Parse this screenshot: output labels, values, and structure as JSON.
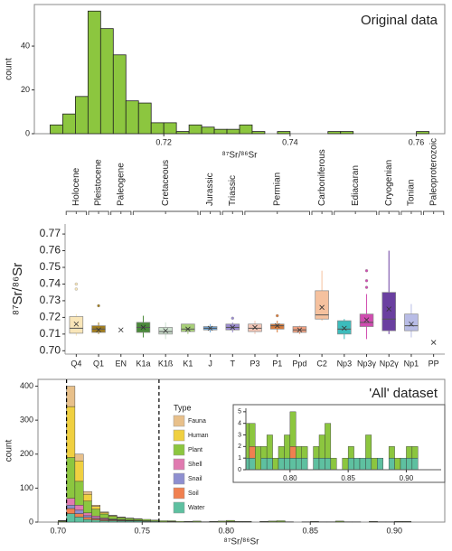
{
  "chart_data": [
    {
      "type": "histogram",
      "title": "Original data",
      "x_label": "⁸⁷Sr/⁸⁶Sr",
      "y_label": "count",
      "bins": [
        0.702,
        0.704,
        0.706,
        0.708,
        0.71,
        0.712,
        0.714,
        0.716,
        0.718,
        0.72,
        0.722,
        0.724,
        0.726,
        0.728,
        0.73,
        0.732,
        0.734,
        0.736,
        0.738,
        0.74,
        0.742,
        0.744,
        0.746,
        0.748,
        0.75,
        0.752,
        0.754,
        0.756,
        0.758,
        0.76,
        0.762
      ],
      "values": [
        4,
        9,
        17,
        56,
        48,
        36,
        15,
        14,
        5,
        5,
        1,
        4,
        3,
        2,
        2,
        4,
        1,
        0,
        1,
        0,
        0,
        0,
        1,
        1,
        0,
        0,
        0,
        0,
        0,
        1
      ],
      "color": "#8cc63f",
      "xlim": [
        0.6995,
        0.7645
      ],
      "xticks": [
        0.72,
        0.74,
        0.76
      ],
      "ylim": [
        0,
        59
      ],
      "yticks": [
        0,
        20,
        40
      ]
    },
    {
      "type": "box",
      "y_label": "⁸⁷Sr/⁸⁶Sr",
      "categories": [
        "Q4",
        "Q1",
        "EN",
        "K1a",
        "K1ß",
        "K1",
        "J",
        "T",
        "P3",
        "P1",
        "Ppd",
        "C2",
        "Np3",
        "Np3γ",
        "Np2γ",
        "Np1",
        "PP"
      ],
      "groups": [
        {
          "label": "Holocene",
          "members": [
            "Q4"
          ]
        },
        {
          "label": "Pleistocene",
          "members": [
            "Q1"
          ]
        },
        {
          "label": "Paleogene",
          "members": [
            "EN"
          ]
        },
        {
          "label": "Cretaceous",
          "members": [
            "K1a",
            "K1ß",
            "K1"
          ]
        },
        {
          "label": "Jurassic",
          "members": [
            "J"
          ]
        },
        {
          "label": "Triassic",
          "members": [
            "T"
          ]
        },
        {
          "label": "Permian",
          "members": [
            "P3",
            "P1",
            "Ppd"
          ]
        },
        {
          "label": "Carboniferous",
          "members": [
            "C2"
          ]
        },
        {
          "label": "Ediacaran",
          "members": [
            "Np3",
            "Np3γ"
          ]
        },
        {
          "label": "Cryogenian",
          "members": [
            "Np2γ"
          ]
        },
        {
          "label": "Tonian",
          "members": [
            "Np1"
          ]
        },
        {
          "label": "Paleoproterozoic",
          "members": [
            "PP"
          ]
        }
      ],
      "boxes": [
        {
          "whislo": 0.709,
          "q1": 0.7105,
          "median": 0.7135,
          "q3": 0.7205,
          "whishi": 0.722,
          "mean": 0.716,
          "fliers": [
            0.737,
            0.74
          ],
          "color": "#f9e6b8"
        },
        {
          "whislo": 0.71,
          "q1": 0.711,
          "median": 0.713,
          "q3": 0.715,
          "whishi": 0.717,
          "mean": 0.7125,
          "fliers": [
            0.727
          ],
          "color": "#a07c1e"
        },
        {
          "mean": 0.7125,
          "color": "#999999"
        },
        {
          "whislo": 0.708,
          "q1": 0.711,
          "median": 0.714,
          "q3": 0.717,
          "whishi": 0.721,
          "mean": 0.714,
          "fliers": [],
          "color": "#4a8a3a"
        },
        {
          "whislo": 0.707,
          "q1": 0.71,
          "median": 0.7115,
          "q3": 0.714,
          "whishi": 0.717,
          "mean": 0.712,
          "fliers": [],
          "color": "#cfe3d0"
        },
        {
          "whislo": 0.71,
          "q1": 0.7115,
          "median": 0.713,
          "q3": 0.716,
          "whishi": 0.716,
          "mean": 0.713,
          "fliers": [],
          "color": "#a8d078"
        },
        {
          "whislo": 0.711,
          "q1": 0.7125,
          "median": 0.7135,
          "q3": 0.7145,
          "whishi": 0.716,
          "mean": 0.7135,
          "fliers": [],
          "color": "#6fa8dc"
        },
        {
          "whislo": 0.711,
          "q1": 0.7125,
          "median": 0.714,
          "q3": 0.716,
          "whishi": 0.717,
          "mean": 0.714,
          "fliers": [
            0.7195
          ],
          "color": "#9b8bd0"
        },
        {
          "whislo": 0.71,
          "q1": 0.7115,
          "median": 0.7135,
          "q3": 0.716,
          "whishi": 0.718,
          "mean": 0.714,
          "fliers": [],
          "color": "#f4c6b6"
        },
        {
          "whislo": 0.711,
          "q1": 0.713,
          "median": 0.715,
          "q3": 0.716,
          "whishi": 0.718,
          "mean": 0.715,
          "fliers": [
            0.721
          ],
          "color": "#d97b3a"
        },
        {
          "whislo": 0.71,
          "q1": 0.711,
          "median": 0.7125,
          "q3": 0.7145,
          "whishi": 0.715,
          "mean": 0.7125,
          "fliers": [],
          "color": "#f0a080"
        },
        {
          "whislo": 0.718,
          "q1": 0.719,
          "median": 0.7215,
          "q3": 0.736,
          "whishi": 0.748,
          "mean": 0.726,
          "fliers": [],
          "color": "#f5c19e"
        },
        {
          "whislo": 0.707,
          "q1": 0.71,
          "median": 0.713,
          "q3": 0.718,
          "whishi": 0.719,
          "mean": 0.7135,
          "fliers": [],
          "color": "#3cbcbc"
        },
        {
          "whislo": 0.707,
          "q1": 0.7145,
          "median": 0.717,
          "q3": 0.722,
          "whishi": 0.734,
          "mean": 0.7185,
          "fliers": [
            0.738,
            0.742,
            0.748
          ],
          "color": "#d04cb0"
        },
        {
          "whislo": 0.71,
          "q1": 0.712,
          "median": 0.719,
          "q3": 0.735,
          "whishi": 0.76,
          "mean": 0.725,
          "fliers": [],
          "color": "#6a3fa0"
        },
        {
          "whislo": 0.708,
          "q1": 0.712,
          "median": 0.715,
          "q3": 0.722,
          "whishi": 0.728,
          "mean": 0.716,
          "fliers": [],
          "color": "#b8bce6"
        },
        {
          "mean": 0.705,
          "color": "#999999"
        }
      ],
      "ylim": [
        0.698,
        0.776
      ],
      "yticks": [
        {
          "value": 0.7,
          "label": "0.70"
        },
        0.71,
        0.72,
        0.73,
        0.74,
        0.75,
        0.76,
        0.77
      ]
    },
    {
      "type": "stacked_histogram",
      "annotation": "'All' dataset",
      "x_label": "⁸⁷Sr/⁸⁶Sr",
      "y_label": "count",
      "legend_title": "Type",
      "bins": [
        0.695,
        0.7,
        0.705,
        0.71,
        0.715,
        0.72,
        0.725,
        0.73,
        0.735,
        0.74,
        0.745,
        0.75,
        0.755,
        0.76,
        0.765,
        0.77,
        0.775,
        0.78,
        0.785,
        0.79,
        0.795,
        0.8,
        0.805,
        0.81,
        0.815,
        0.82,
        0.825,
        0.83,
        0.835,
        0.84,
        0.845,
        0.85,
        0.855,
        0.86,
        0.865,
        0.87,
        0.875,
        0.88,
        0.885,
        0.89,
        0.895,
        0.9,
        0.905,
        0.91,
        0.915,
        0.92,
        0.925
      ],
      "series": [
        {
          "name": "Fauna",
          "color": "#e8c08a",
          "values": [
            0,
            1,
            60,
            20,
            8,
            4,
            2,
            1,
            1,
            0,
            0,
            0,
            0,
            0,
            0,
            0,
            0,
            0,
            0,
            0,
            0,
            0,
            0,
            0,
            0,
            0,
            0,
            0,
            0,
            0,
            0,
            0,
            0,
            0,
            0,
            0,
            0,
            0,
            0,
            0,
            0,
            0,
            0,
            0,
            0,
            0
          ]
        },
        {
          "name": "Human",
          "color": "#f0d040",
          "values": [
            0,
            1,
            150,
            60,
            20,
            8,
            4,
            2,
            1,
            1,
            1,
            0,
            0,
            0,
            0,
            0,
            0,
            0,
            0,
            0,
            0,
            0,
            0,
            0,
            0,
            0,
            0,
            0,
            0,
            0,
            0,
            0,
            0,
            0,
            0,
            0,
            0,
            0,
            0,
            0,
            0,
            0,
            0,
            0,
            0,
            0
          ]
        },
        {
          "name": "Plant",
          "color": "#8cc63f",
          "values": [
            0,
            2,
            120,
            70,
            35,
            20,
            12,
            8,
            6,
            5,
            4,
            4,
            3,
            3,
            2,
            2,
            1,
            2,
            1,
            1,
            2,
            3,
            1,
            1,
            0,
            1,
            2,
            3,
            1,
            0,
            1,
            1,
            0,
            0,
            2,
            1,
            0,
            0,
            1,
            1,
            0,
            1,
            1,
            0,
            0,
            0
          ]
        },
        {
          "name": "Shell",
          "color": "#e07ab0",
          "values": [
            0,
            0,
            20,
            15,
            8,
            5,
            3,
            2,
            1,
            1,
            1,
            1,
            0,
            0,
            0,
            0,
            0,
            0,
            0,
            0,
            0,
            0,
            0,
            0,
            0,
            0,
            0,
            0,
            0,
            0,
            0,
            0,
            0,
            0,
            0,
            0,
            0,
            0,
            0,
            0,
            0,
            0,
            0,
            0,
            0,
            0
          ]
        },
        {
          "name": "Snail",
          "color": "#8e8fd0",
          "values": [
            0,
            0,
            10,
            10,
            5,
            3,
            2,
            1,
            1,
            1,
            0,
            0,
            0,
            0,
            0,
            0,
            0,
            0,
            0,
            0,
            0,
            0,
            0,
            0,
            0,
            0,
            0,
            0,
            0,
            0,
            0,
            0,
            0,
            0,
            0,
            0,
            0,
            0,
            0,
            0,
            0,
            0,
            0,
            0,
            0,
            0
          ]
        },
        {
          "name": "Soil",
          "color": "#f08050",
          "values": [
            0,
            0,
            15,
            10,
            6,
            4,
            3,
            2,
            2,
            1,
            1,
            1,
            1,
            0,
            1,
            0,
            0,
            0,
            0,
            0,
            0,
            1,
            0,
            0,
            0,
            0,
            0,
            0,
            0,
            0,
            0,
            0,
            0,
            0,
            0,
            0,
            0,
            0,
            0,
            0,
            0,
            0,
            0,
            0,
            0,
            0
          ]
        },
        {
          "name": "Water",
          "color": "#5ec0a0",
          "values": [
            0,
            1,
            25,
            15,
            8,
            6,
            4,
            4,
            3,
            3,
            3,
            2,
            2,
            1,
            1,
            0,
            1,
            1,
            0,
            1,
            1,
            1,
            1,
            1,
            0,
            1,
            1,
            1,
            0,
            0,
            0,
            1,
            1,
            1,
            1,
            0,
            1,
            0,
            1,
            0,
            1,
            1,
            1,
            0,
            0,
            0
          ]
        }
      ],
      "vlines": [
        0.705,
        0.76
      ],
      "xlim": [
        0.688,
        0.93
      ],
      "xticks": [
        {
          "value": 0.7,
          "label": "0.70"
        },
        0.75,
        {
          "value": 0.8,
          "label": "0.80"
        },
        0.85,
        {
          "value": 0.9,
          "label": "0.90"
        }
      ],
      "ylim": [
        0,
        420
      ],
      "yticks": [
        0,
        100,
        200,
        300,
        400
      ],
      "inset": {
        "xlim": [
          0.762,
          0.93
        ],
        "xticks": [
          {
            "value": 0.8,
            "label": "0.80"
          },
          0.85,
          {
            "value": 0.9,
            "label": "0.90"
          }
        ],
        "ylim": [
          0,
          5.3
        ],
        "yticks": [
          0,
          1,
          2,
          3,
          4,
          5
        ]
      }
    }
  ]
}
